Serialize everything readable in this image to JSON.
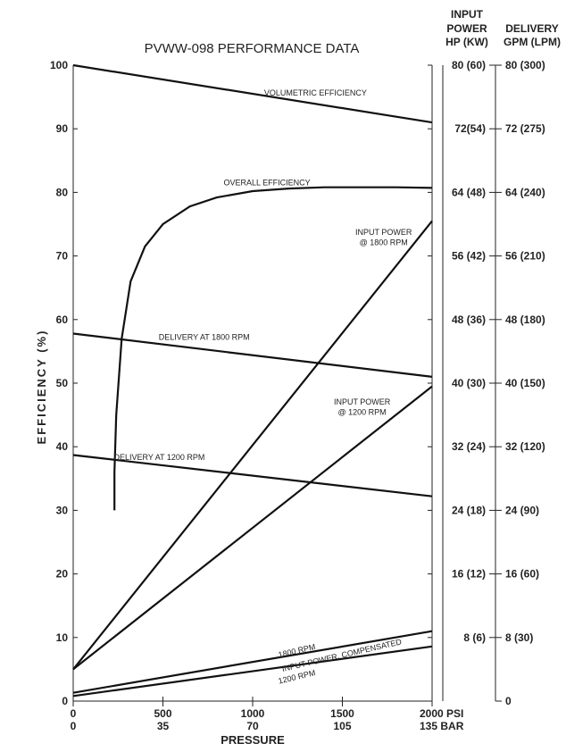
{
  "chart_data": {
    "type": "line",
    "title": "PVWW-098 PERFORMANCE DATA",
    "xlabel": "PRESSURE",
    "ylabel": "EFFICIENCY (%)",
    "xlim": [
      0,
      2000
    ],
    "ylim": [
      0,
      100
    ],
    "x_ticks": [
      {
        "value": 0,
        "psi": "0",
        "bar": "0"
      },
      {
        "value": 500,
        "psi": "500",
        "bar": "35"
      },
      {
        "value": 1000,
        "psi": "1000",
        "bar": "70"
      },
      {
        "value": 1500,
        "psi": "1500",
        "bar": "105"
      },
      {
        "value": 2000,
        "psi": "2000 PSI",
        "bar": "135 BAR"
      }
    ],
    "y_ticks": [
      0,
      10,
      20,
      30,
      40,
      50,
      60,
      70,
      80,
      90,
      100
    ],
    "power_axis_header": [
      "INPUT",
      "POWER",
      "HP (KW)"
    ],
    "delivery_axis_header": [
      "DELIVERY",
      "GPM (LPM)"
    ],
    "right_ticks": [
      {
        "value": 100,
        "power": "80 (60)",
        "delivery": "80 (300)"
      },
      {
        "value": 90,
        "power": "72(54)",
        "delivery": "72 (275)"
      },
      {
        "value": 80,
        "power": "64 (48)",
        "delivery": "64 (240)"
      },
      {
        "value": 70,
        "power": "56 (42)",
        "delivery": "56 (210)"
      },
      {
        "value": 60,
        "power": "48 (36)",
        "delivery": "48 (180)"
      },
      {
        "value": 50,
        "power": "40 (30)",
        "delivery": "40 (150)"
      },
      {
        "value": 40,
        "power": "32 (24)",
        "delivery": "32 (120)"
      },
      {
        "value": 30,
        "power": "24 (18)",
        "delivery": "24 (90)"
      },
      {
        "value": 20,
        "power": "16 (12)",
        "delivery": "16 (60)"
      },
      {
        "value": 10,
        "power": "8 (6)",
        "delivery": "8 (30)"
      },
      {
        "value": 0,
        "power": "",
        "delivery": "0"
      }
    ],
    "series": [
      {
        "name": "VOLUMETRIC EFFICIENCY",
        "x": [
          0,
          2000
        ],
        "y": [
          100,
          91
        ]
      },
      {
        "name": "OVERALL EFFICIENCY",
        "x": [
          230,
          230,
          240,
          270,
          320,
          400,
          500,
          650,
          800,
          1000,
          1200,
          1400,
          1600,
          1800,
          2000
        ],
        "y": [
          30,
          36,
          45,
          57,
          66,
          71.5,
          75,
          77.8,
          79.2,
          80.2,
          80.6,
          80.8,
          80.8,
          80.8,
          80.7
        ]
      },
      {
        "name": "INPUT POWER @ 1800 RPM",
        "x": [
          0,
          2000
        ],
        "y": [
          5,
          75.5
        ]
      },
      {
        "name": "DELIVERY AT 1800 RPM",
        "x": [
          0,
          2000
        ],
        "y": [
          57.8,
          51
        ]
      },
      {
        "name": "INPUT POWER @ 1200 RPM",
        "x": [
          0,
          2000
        ],
        "y": [
          5,
          49.5
        ]
      },
      {
        "name": "DELIVERY AT 1200 RPM",
        "x": [
          0,
          2000
        ],
        "y": [
          38.7,
          32.2
        ]
      },
      {
        "name": "1800 RPM",
        "x": [
          0,
          2000
        ],
        "y": [
          1.3,
          11
        ]
      },
      {
        "name": "1200 RPM",
        "x": [
          0,
          2000
        ],
        "y": [
          0.8,
          8.6
        ]
      }
    ],
    "annotations": [
      {
        "text": "VOLUMETRIC EFFICIENCY",
        "x": 1350,
        "y": 95.2
      },
      {
        "text": "OVERALL EFFICIENCY",
        "x": 1080,
        "y": 81.1
      },
      {
        "text": "INPUT POWER",
        "x": 1730,
        "y": 73.3
      },
      {
        "text": "@ 1800 RPM",
        "x": 1730,
        "y": 71.7
      },
      {
        "text": "DELIVERY AT 1800 RPM",
        "x": 730,
        "y": 56.8
      },
      {
        "text": "INPUT POWER",
        "x": 1610,
        "y": 46.6
      },
      {
        "text": "@ 1200 RPM",
        "x": 1610,
        "y": 45.0
      },
      {
        "text": "DELIVERY AT 1200 RPM",
        "x": 480,
        "y": 37.9
      },
      {
        "text": "1800 RPM",
        "x": 1250,
        "y": 7.5,
        "angle": -13
      },
      {
        "text": "INPUT POWER, COMPENSATED",
        "x": 1500,
        "y": 6.8,
        "angle": -13
      },
      {
        "text": "1200 RPM",
        "x": 1250,
        "y": 3.4,
        "angle": -13
      }
    ],
    "grid": false,
    "legend": "none"
  }
}
